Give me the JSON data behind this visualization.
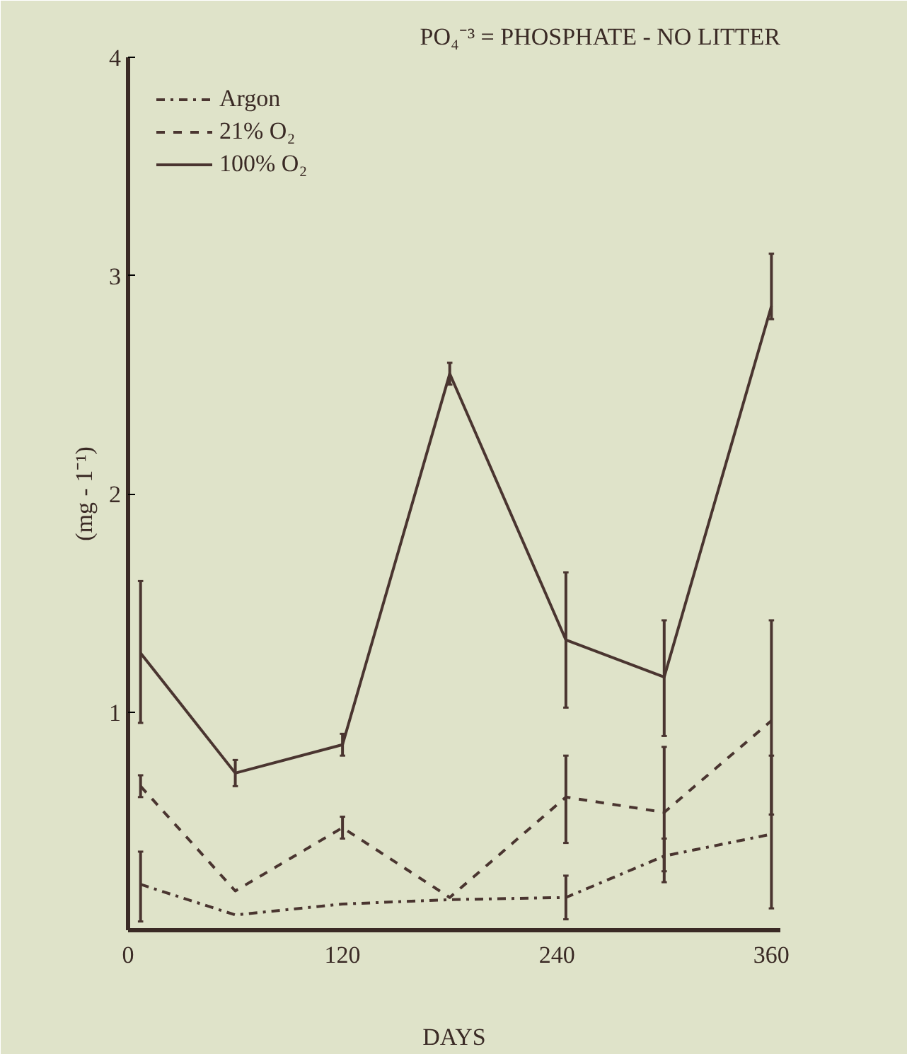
{
  "chart_data": {
    "type": "line",
    "title": "PO₄⁻³ = PHOSPHATE - NO LITTER",
    "xlabel": "DAYS",
    "ylabel": "(mg - 1⁻¹)",
    "x": [
      7,
      60,
      120,
      180,
      245,
      300,
      360
    ],
    "series": [
      {
        "name": "Argon",
        "color": "#4a3530",
        "line_style": "dashdot",
        "values": [
          0.21,
          0.07,
          0.12,
          0.14,
          0.15,
          0.34,
          0.44
        ],
        "errors": [
          [
            0.04,
            0.36
          ],
          null,
          null,
          null,
          [
            0.05,
            0.25
          ],
          [
            0.27,
            0.42
          ],
          [
            0.1,
            0.8
          ]
        ]
      },
      {
        "name": "21% O₂",
        "color": "#4a3530",
        "line_style": "dashed",
        "values": [
          0.66,
          0.18,
          0.47,
          0.15,
          0.61,
          0.54,
          0.96
        ],
        "errors": [
          0.05,
          null,
          0.05,
          null,
          [
            0.4,
            0.8
          ],
          [
            0.22,
            0.84
          ],
          [
            0.53,
            1.42
          ]
        ]
      },
      {
        "name": "100% O₂",
        "color": "#4a3530",
        "line_style": "solid",
        "values": [
          1.27,
          0.72,
          0.85,
          2.55,
          1.33,
          1.16,
          2.86
        ],
        "errors": [
          [
            0.95,
            1.6
          ],
          0.06,
          0.05,
          0.05,
          [
            1.02,
            1.64
          ],
          [
            0.89,
            1.42
          ],
          [
            2.8,
            3.1
          ]
        ]
      }
    ],
    "xlim": [
      0,
      365
    ],
    "ylim": [
      0,
      4
    ],
    "xticks": [
      0,
      120,
      240,
      360
    ],
    "yticks": [
      1,
      2,
      3,
      4
    ],
    "grid": false,
    "legend": "top left",
    "marker": "none"
  }
}
